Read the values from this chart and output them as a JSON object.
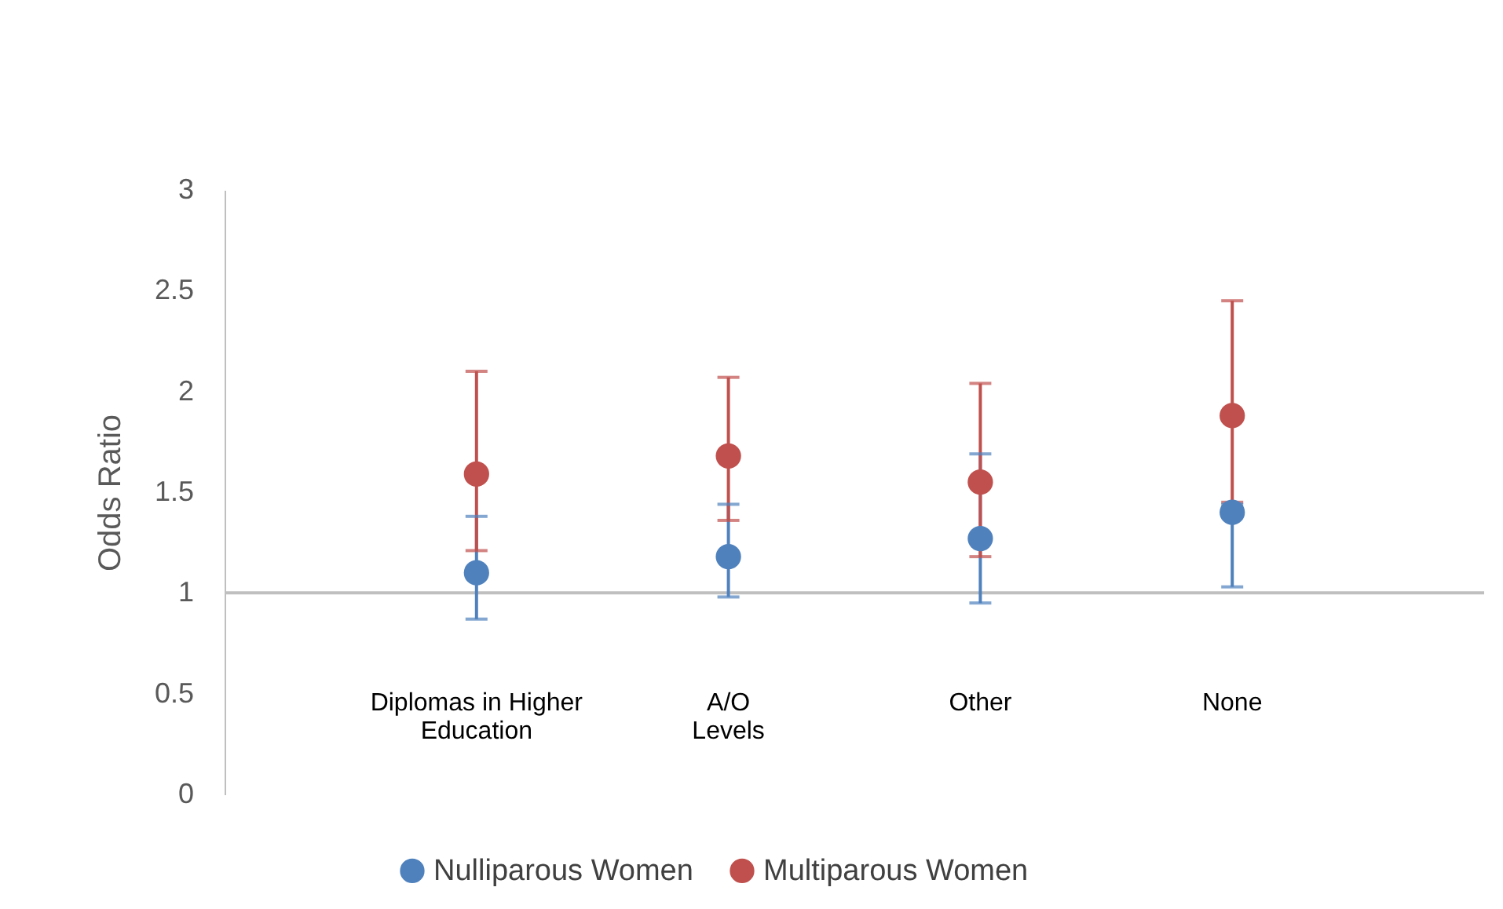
{
  "chart_data": {
    "type": "scatter",
    "ylabel": "Odds Ratio",
    "categories": [
      "Diplomas in Higher\nEducation",
      "A/O\nLevels",
      "Other",
      "None"
    ],
    "series": [
      {
        "name": "Nulliparous Women",
        "color": "#4f81bd",
        "values": [
          1.1,
          1.18,
          1.27,
          1.4
        ],
        "errors": [
          [
            0.87,
            1.38
          ],
          [
            0.98,
            1.44
          ],
          [
            0.95,
            1.69
          ],
          [
            1.03,
            1.44
          ]
        ]
      },
      {
        "name": "Multiparous Women",
        "color": "#c0504d",
        "values": [
          1.59,
          1.68,
          1.55,
          1.88
        ],
        "errors": [
          [
            1.21,
            2.1
          ],
          [
            1.36,
            2.07
          ],
          [
            1.18,
            2.04
          ],
          [
            1.45,
            2.45
          ]
        ]
      }
    ],
    "ylim": [
      0,
      3
    ],
    "yticks": [
      0,
      0.5,
      1,
      1.5,
      2,
      2.5,
      3
    ],
    "ref_lines": [
      {
        "axis": "y",
        "value": 1,
        "color": "#bfbfbf"
      }
    ],
    "marker": "circle",
    "grid": false,
    "legend": "bottom"
  }
}
